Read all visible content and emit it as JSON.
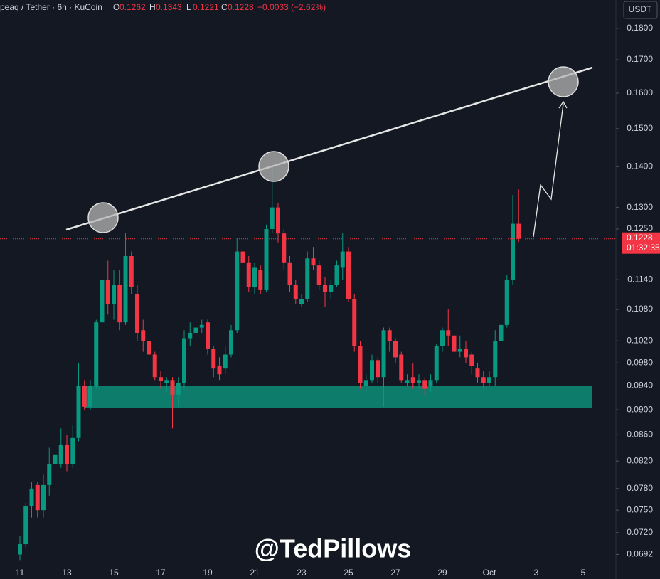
{
  "chart_data": {
    "type": "candlestick",
    "symbol": "peaq / Tether · 6h · KuCoin",
    "ohlc_labels": [
      "O",
      "H",
      "L",
      "C"
    ],
    "change_label": "−0.0033 (−2.62%)",
    "currency": "USDT",
    "countdown": "01:32:35",
    "watermark": "@TedPillows",
    "up_color": "#089981",
    "down_color": "#f23645",
    "log_scale": true,
    "grid": false,
    "categories": [
      "11",
      null,
      null,
      null,
      null,
      null,
      null,
      null,
      "13",
      null,
      null,
      null,
      null,
      null,
      null,
      null,
      "15",
      null,
      null,
      null,
      null,
      null,
      null,
      null,
      "17",
      null,
      null,
      null,
      null,
      null,
      null,
      null,
      "19",
      null,
      null,
      null,
      null,
      null,
      null,
      null,
      "21",
      null,
      null,
      null,
      null,
      null,
      null,
      null,
      "23",
      null,
      null,
      null,
      null,
      null,
      null,
      null,
      "25",
      null,
      null,
      null,
      null,
      null,
      null,
      null,
      "27",
      null,
      null,
      null,
      null,
      null,
      null,
      null,
      "29",
      null,
      null,
      null,
      null,
      null,
      null,
      null,
      "Oct",
      null,
      null,
      null,
      null,
      null,
      null,
      null,
      "3",
      null,
      null,
      null,
      null,
      null,
      null,
      null,
      "5"
    ],
    "open": [
      0.0692,
      0.0705,
      0.0755,
      0.0785,
      0.075,
      0.0785,
      0.0815,
      0.0815,
      0.0845,
      0.0815,
      0.0855,
      0.094,
      0.0905,
      0.094,
      0.1055,
      0.114,
      0.109,
      0.113,
      0.1055,
      0.119,
      0.111,
      0.104,
      0.102,
      0.0995,
      0.0955,
      0.0945,
      0.095,
      0.0925,
      0.0945,
      0.1025,
      0.1035,
      0.1045,
      0.1055,
      0.1005,
      0.0975,
      0.097,
      0.0995,
      0.104,
      0.12,
      0.1175,
      0.1125,
      0.116,
      0.112,
      0.125,
      0.13,
      0.124,
      0.1175,
      0.113,
      0.109,
      0.11,
      0.1185,
      0.117,
      0.113,
      0.1115,
      0.113,
      0.1165,
      0.12,
      0.11,
      0.101,
      0.094,
      0.095,
      0.0985,
      0.0955,
      0.104,
      0.102,
      0.0995,
      0.0945,
      0.0955,
      0.0945,
      0.095,
      0.094,
      0.095,
      0.101,
      0.104,
      0.103,
      0.1,
      0.1005,
      0.0995,
      0.097,
      0.0955,
      0.0945,
      0.0955,
      0.102,
      0.105,
      0.114,
      0.1262,
      null,
      null,
      null,
      null,
      null,
      null,
      null,
      null,
      null,
      null,
      null
    ],
    "high": [
      0.0715,
      0.076,
      0.079,
      0.079,
      0.08,
      0.084,
      0.086,
      0.087,
      0.086,
      0.0875,
      0.098,
      0.095,
      0.095,
      0.106,
      0.127,
      0.118,
      0.116,
      0.116,
      0.124,
      0.12,
      0.113,
      0.106,
      0.103,
      0.1,
      0.0965,
      0.0955,
      0.0955,
      0.0955,
      0.104,
      0.1055,
      0.108,
      0.106,
      0.106,
      0.101,
      0.099,
      0.101,
      0.105,
      0.123,
      0.124,
      0.119,
      0.1175,
      0.117,
      0.126,
      0.14,
      0.131,
      0.125,
      0.119,
      0.114,
      0.111,
      0.12,
      0.121,
      0.118,
      0.1145,
      0.114,
      0.118,
      0.124,
      0.121,
      0.111,
      0.102,
      0.096,
      0.0995,
      0.099,
      0.1045,
      0.1045,
      0.1025,
      0.1,
      0.096,
      0.098,
      0.096,
      0.0955,
      0.096,
      0.1015,
      0.1045,
      0.108,
      0.106,
      0.103,
      0.102,
      0.1,
      0.098,
      0.0965,
      0.0965,
      0.104,
      0.106,
      0.115,
      0.133,
      0.1343,
      null,
      null,
      null,
      null,
      null,
      null,
      null,
      null,
      null,
      null,
      null
    ],
    "low": [
      0.0685,
      0.07,
      0.074,
      0.074,
      0.074,
      0.077,
      0.08,
      0.081,
      0.0805,
      0.081,
      0.085,
      0.09,
      0.09,
      0.0935,
      0.104,
      0.107,
      0.106,
      0.104,
      0.105,
      0.111,
      0.102,
      0.1,
      0.0935,
      0.095,
      0.0935,
      0.093,
      0.087,
      0.0905,
      0.0935,
      0.101,
      0.102,
      0.1035,
      0.0995,
      0.0955,
      0.095,
      0.096,
      0.099,
      0.1035,
      0.1165,
      0.1115,
      0.111,
      0.111,
      0.1115,
      0.124,
      0.122,
      0.116,
      0.1115,
      0.109,
      0.1085,
      0.1095,
      0.116,
      0.112,
      0.1085,
      0.11,
      0.1125,
      0.114,
      0.1095,
      0.1,
      0.0935,
      0.093,
      0.0945,
      0.0945,
      0.0905,
      0.1,
      0.098,
      0.0945,
      0.094,
      0.0935,
      0.0935,
      0.0925,
      0.093,
      0.0945,
      0.1,
      0.101,
      0.099,
      0.099,
      0.098,
      0.096,
      0.0945,
      0.0935,
      0.094,
      0.094,
      0.1015,
      0.1045,
      0.113,
      0.1221,
      null,
      null,
      null,
      null,
      null,
      null,
      null,
      null,
      null,
      null,
      null
    ],
    "close": [
      0.0705,
      0.0755,
      0.078,
      0.075,
      0.0785,
      0.0815,
      0.083,
      0.0845,
      0.0815,
      0.0855,
      0.094,
      0.0905,
      0.094,
      0.1055,
      0.114,
      0.109,
      0.113,
      0.1055,
      0.119,
      0.1125,
      0.1035,
      0.102,
      0.0995,
      0.0955,
      0.0948,
      0.095,
      0.0925,
      0.0945,
      0.1025,
      0.1035,
      0.1045,
      0.105,
      0.1005,
      0.097,
      0.096,
      0.0995,
      0.104,
      0.12,
      0.1175,
      0.1125,
      0.1165,
      0.112,
      0.125,
      0.13,
      0.124,
      0.1175,
      0.113,
      0.11,
      0.11,
      0.1185,
      0.117,
      0.113,
      0.1115,
      0.113,
      0.117,
      0.12,
      0.11,
      0.101,
      0.0945,
      0.095,
      0.0985,
      0.0955,
      0.104,
      0.102,
      0.099,
      0.095,
      0.095,
      0.0945,
      0.095,
      0.0935,
      0.095,
      0.101,
      0.104,
      0.103,
      0.1,
      0.1005,
      0.099,
      0.0975,
      0.0955,
      0.0945,
      0.0955,
      0.102,
      0.105,
      0.114,
      0.1262,
      0.1228,
      null,
      null,
      null,
      null,
      null,
      null,
      null,
      null,
      null,
      null,
      null
    ],
    "ylim": [
      0.068,
      0.19
    ],
    "yticks": [
      {
        "value": 0.18,
        "label": "0.1800"
      },
      {
        "value": 0.17,
        "label": "0.1700"
      },
      {
        "value": 0.16,
        "label": "0.1600"
      },
      {
        "value": 0.15,
        "label": "0.1500"
      },
      {
        "value": 0.14,
        "label": "0.1400"
      },
      {
        "value": 0.13,
        "label": "0.1300"
      },
      {
        "value": 0.125,
        "label": "0.1250"
      },
      {
        "value": 0.114,
        "label": "0.1140"
      },
      {
        "value": 0.108,
        "label": "0.1080"
      },
      {
        "value": 0.102,
        "label": "0.1020"
      },
      {
        "value": 0.098,
        "label": "0.0980"
      },
      {
        "value": 0.094,
        "label": "0.0940"
      },
      {
        "value": 0.09,
        "label": "0.0900"
      },
      {
        "value": 0.086,
        "label": "0.0860"
      },
      {
        "value": 0.082,
        "label": "0.0820"
      },
      {
        "value": 0.078,
        "label": "0.0780"
      },
      {
        "value": 0.075,
        "label": "0.0750"
      },
      {
        "value": 0.072,
        "label": "0.0720"
      },
      0.0692
    ]
  }
}
